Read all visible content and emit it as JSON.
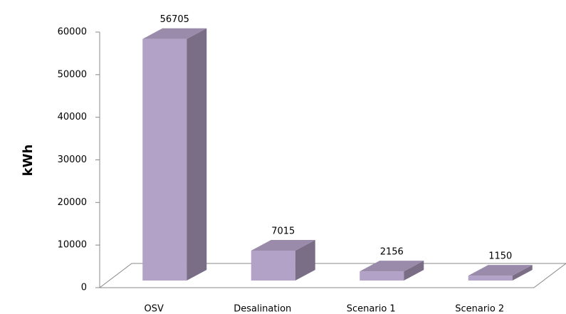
{
  "chart_data": {
    "type": "bar",
    "y_label": "kWh",
    "categories": [
      "OSV",
      "Desalination",
      "Scenario 1",
      "Scenario 2"
    ],
    "values": [
      56705,
      7015,
      2156,
      1150
    ],
    "color": "#b3a2c7",
    "ylim": [
      0,
      60000
    ],
    "yticks": [
      0,
      10000,
      20000,
      30000,
      40000,
      50000,
      60000
    ]
  }
}
